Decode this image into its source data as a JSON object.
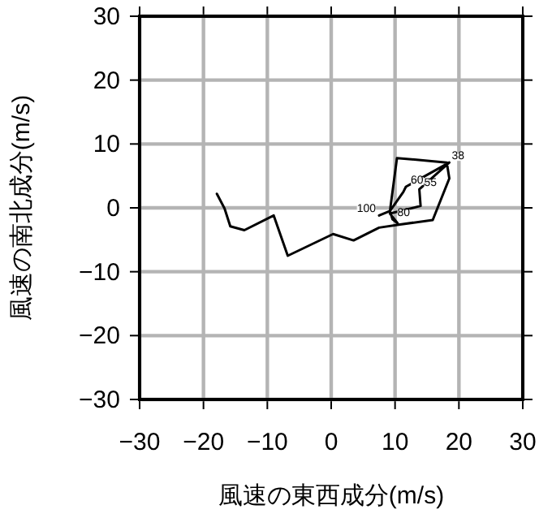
{
  "chart_data": {
    "type": "line",
    "xlabel": "風速の東西成分(m/s)",
    "ylabel": "風速の南北成分(m/s)",
    "xlim": [
      -30,
      30
    ],
    "ylim": [
      -30,
      30
    ],
    "xticks": [
      -30,
      -20,
      -10,
      0,
      10,
      20,
      30
    ],
    "yticks": [
      -30,
      -20,
      -10,
      0,
      10,
      20,
      30
    ],
    "grid": true,
    "series": [
      {
        "color": "#000000",
        "x": [
          -17.9,
          -16.7,
          -15.8,
          -13.6,
          -9.0,
          -6.8,
          0.3,
          3.5,
          7.5,
          10.8,
          15.9,
          18.5,
          18.1,
          10.3,
          9.2,
          9.6,
          10.4,
          9.2,
          14.0,
          13.8,
          18.5,
          11.7,
          11.3,
          9.2,
          7.5
        ],
        "values": [
          2.2,
          -0.1,
          -2.9,
          -3.5,
          -1.2,
          -7.5,
          -4.1,
          -5.1,
          -3.1,
          -2.6,
          -1.9,
          4.6,
          7.1,
          7.8,
          -0.5,
          -1.8,
          -2.4,
          -0.9,
          0.3,
          2.9,
          7.1,
          3.3,
          2.5,
          -0.5,
          -1.2
        ]
      }
    ],
    "annotations": [
      {
        "text": "38",
        "x": 18.1,
        "y": 7.1
      },
      {
        "text": "55",
        "x": 13.8,
        "y": 2.9
      },
      {
        "text": "60",
        "x": 11.7,
        "y": 3.3
      },
      {
        "text": "80",
        "x": 9.6,
        "y": -1.8
      },
      {
        "text": "100",
        "x": 7.5,
        "y": -1.2
      }
    ]
  }
}
